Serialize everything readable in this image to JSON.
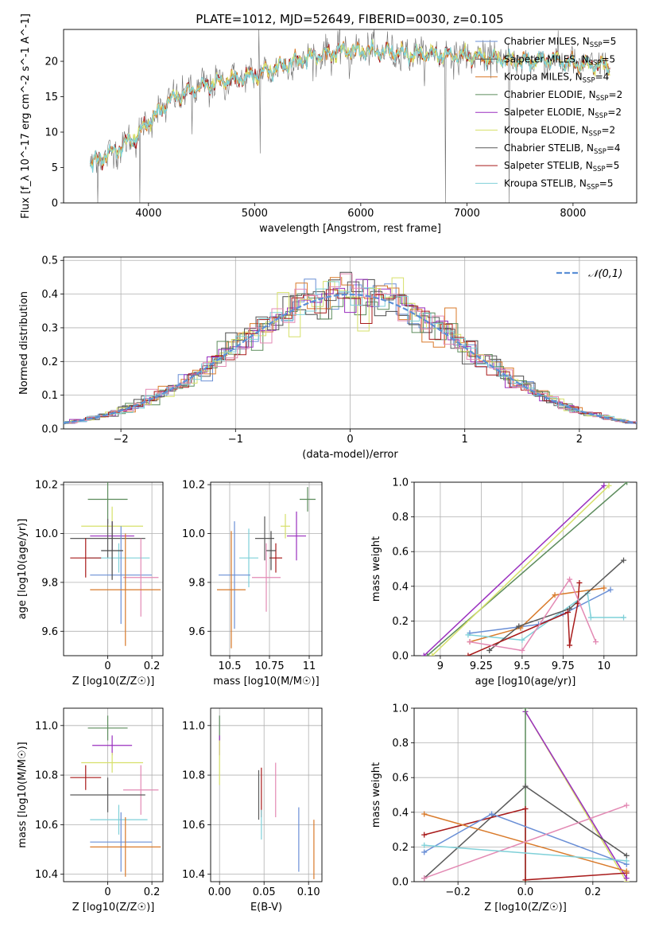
{
  "figure": {
    "title": "PLATE=1012, MJD=52649, FIBERID=0030, z=0.105"
  },
  "colors": {
    "Chabrier MILES": "#6a8fd6",
    "Salpeter MILES": "#4a4a4a",
    "Kroupa MILES": "#d97a2a",
    "Chabrier ELODIE": "#5c8c5c",
    "Salpeter ELODIE": "#9a2fbf",
    "Kroupa ELODIE": "#d6e06a",
    "Chabrier STELIB": "#5a5a5a",
    "Salpeter STELIB": "#a81a1a",
    "Kroupa STELIB": "#7fd0d8",
    "Normal curve": "#5b8fd6",
    "Pink": "#e38ab4"
  },
  "chart_data": [
    {
      "id": "spectrum",
      "type": "line",
      "title": "PLATE=1012, MJD=52649, FIBERID=0030, z=0.105",
      "xlabel": "wavelength [Angstrom, rest frame]",
      "ylabel": "Flux [f_λ 10^-17 erg cm^-2 s^-1 A^-1]",
      "xlim": [
        3200,
        8600
      ],
      "ylim": [
        0,
        24.5
      ],
      "xticks": [
        4000,
        5000,
        6000,
        7000,
        8000
      ],
      "yticks": [
        0,
        5,
        10,
        15,
        20
      ],
      "grid": false,
      "legend_position": "right",
      "series": [
        {
          "name": "Chabrier MILES, N_SSP=5"
        },
        {
          "name": "Salpeter MILES, N_SSP=5"
        },
        {
          "name": "Kroupa MILES, N_SSP=4"
        },
        {
          "name": "Chabrier ELODIE, N_SSP=2"
        },
        {
          "name": "Salpeter ELODIE, N_SSP=2"
        },
        {
          "name": "Kroupa ELODIE, N_SSP=2"
        },
        {
          "name": "Chabrier STELIB, N_SSP=4"
        },
        {
          "name": "Salpeter STELIB, N_SSP=5"
        },
        {
          "name": "Kroupa STELIB, N_SSP=5"
        }
      ],
      "continuum_points": [
        [
          3450,
          5.5
        ],
        [
          3700,
          7.5
        ],
        [
          3900,
          9.5
        ],
        [
          4000,
          11.5
        ],
        [
          4200,
          14.5
        ],
        [
          4500,
          16.5
        ],
        [
          4800,
          17.5
        ],
        [
          5000,
          18.0
        ],
        [
          5200,
          19.0
        ],
        [
          5500,
          20.5
        ],
        [
          5800,
          21.5
        ],
        [
          6000,
          21.5
        ],
        [
          6300,
          21.3
        ],
        [
          6600,
          21.0
        ],
        [
          6900,
          20.8
        ],
        [
          7200,
          20.5
        ],
        [
          7500,
          20.0
        ],
        [
          7800,
          20.2
        ],
        [
          8100,
          19.5
        ],
        [
          8350,
          19.3
        ]
      ],
      "dips": [
        [
          3520,
          0
        ],
        [
          3920,
          0
        ],
        [
          4410,
          9.7
        ],
        [
          4570,
          13.5
        ],
        [
          5150,
          17.0
        ],
        [
          5890,
          17.5
        ],
        [
          6560,
          19.5
        ],
        [
          6800,
          0
        ],
        [
          7400,
          0
        ]
      ],
      "spikes": [
        [
          5040,
          24.5
        ],
        [
          5050,
          7.0
        ]
      ]
    },
    {
      "id": "residuals",
      "type": "line",
      "xlabel": "(data-model)/error",
      "ylabel": "Normed distribution",
      "xlim": [
        -2.5,
        2.5
      ],
      "ylim": [
        0,
        0.51
      ],
      "xticks": [
        -2,
        -1,
        0,
        1,
        2
      ],
      "xtick_labels": [
        "−2",
        "−1",
        "0",
        "1",
        "2"
      ],
      "yticks": [
        0.0,
        0.1,
        0.2,
        0.3,
        0.4,
        0.5
      ],
      "grid": true,
      "legend_position": "top-right",
      "legend": "𝒩(0,1)",
      "normal": {
        "mean": 0,
        "sigma": 1
      }
    },
    {
      "id": "Z-age",
      "type": "scatter",
      "xlabel": "Z [log10(Z/Z☉)]",
      "ylabel": "age [log10(age/yr)]",
      "xlim": [
        -0.2,
        0.25
      ],
      "ylim": [
        9.5,
        10.21
      ],
      "xticks": [
        0.0,
        0.2
      ],
      "yticks": [
        9.6,
        9.8,
        10.0,
        10.2
      ],
      "grid": true,
      "points": [
        {
          "c": "Chabrier ELODIE",
          "x": 0.0,
          "xerr": 0.09,
          "y": 10.14,
          "yerr": 0.1
        },
        {
          "c": "Kroupa ELODIE",
          "x": 0.02,
          "xerr": 0.14,
          "y": 10.03,
          "yerr": 0.08
        },
        {
          "c": "Salpeter ELODIE",
          "x": 0.02,
          "xerr": 0.1,
          "y": 9.99,
          "yerr": 0.06
        },
        {
          "c": "Chabrier STELIB",
          "x": 0.0,
          "xerr": 0.17,
          "y": 9.98,
          "yerr": 0.08
        },
        {
          "c": "Kroupa STELIB",
          "x": 0.05,
          "xerr": 0.14,
          "y": 9.9,
          "yerr": 0.06
        },
        {
          "c": "Salpeter STELIB",
          "x": -0.1,
          "xerr": 0.07,
          "y": 9.9,
          "yerr": 0.08
        },
        {
          "c": "Chabrier MILES",
          "x": 0.06,
          "xerr": 0.14,
          "y": 9.83,
          "yerr": 0.2
        },
        {
          "c": "Pink",
          "x": 0.15,
          "xerr": 0.08,
          "y": 9.82,
          "yerr": 0.16
        },
        {
          "c": "Kroupa MILES",
          "x": 0.08,
          "xerr": 0.16,
          "y": 9.77,
          "yerr": 0.23
        },
        {
          "c": "Salpeter MILES",
          "x": 0.02,
          "xerr": 0.05,
          "y": 9.93,
          "yerr": 0.12
        }
      ]
    },
    {
      "id": "mass-age",
      "type": "scatter",
      "xlabel": "mass [log10(M/M☉)]",
      "xlim": [
        10.38,
        11.08
      ],
      "ylim": [
        9.5,
        10.21
      ],
      "xticks": [
        10.5,
        10.75,
        11.0
      ],
      "yticks": [
        9.6,
        9.8,
        10.0,
        10.2
      ],
      "grid": true,
      "points": [
        {
          "c": "Chabrier ELODIE",
          "x": 10.99,
          "xerr": 0.05,
          "y": 10.14,
          "yerr": 0.05
        },
        {
          "c": "Kroupa ELODIE",
          "x": 10.85,
          "xerr": 0.03,
          "y": 10.03,
          "yerr": 0.05
        },
        {
          "c": "Salpeter ELODIE",
          "x": 10.92,
          "xerr": 0.06,
          "y": 9.99,
          "yerr": 0.1
        },
        {
          "c": "Chabrier STELIB",
          "x": 10.72,
          "xerr": 0.06,
          "y": 9.98,
          "yerr": 0.09
        },
        {
          "c": "Kroupa STELIB",
          "x": 10.62,
          "xerr": 0.06,
          "y": 9.9,
          "yerr": 0.12
        },
        {
          "c": "Salpeter STELIB",
          "x": 10.79,
          "xerr": 0.04,
          "y": 9.9,
          "yerr": 0.06
        },
        {
          "c": "Chabrier MILES",
          "x": 10.53,
          "xerr": 0.1,
          "y": 9.83,
          "yerr": 0.22
        },
        {
          "c": "Pink",
          "x": 10.73,
          "xerr": 0.09,
          "y": 9.82,
          "yerr": 0.14
        },
        {
          "c": "Kroupa MILES",
          "x": 10.51,
          "xerr": 0.09,
          "y": 9.77,
          "yerr": 0.24
        },
        {
          "c": "Salpeter MILES",
          "x": 10.76,
          "xerr": 0.03,
          "y": 9.93,
          "yerr": 0.08
        }
      ]
    },
    {
      "id": "age-weight",
      "type": "line",
      "xlabel": "age [log10(age/yr)]",
      "ylabel": "mass weight",
      "xlim": [
        8.84,
        10.2
      ],
      "ylim": [
        0,
        1.0
      ],
      "xticks": [
        9.0,
        9.25,
        9.5,
        9.75,
        10.0
      ],
      "yticks": [
        0.0,
        0.2,
        0.4,
        0.6,
        0.8,
        1.0
      ],
      "grid": true,
      "series": [
        {
          "c": "Chabrier ELODIE",
          "x": [
            8.92,
            10.14
          ],
          "y": [
            0.0,
            1.0
          ]
        },
        {
          "c": "Salpeter ELODIE",
          "x": [
            8.9,
            10.0
          ],
          "y": [
            0.0,
            0.98
          ]
        },
        {
          "c": "Kroupa ELODIE",
          "x": [
            8.95,
            10.03
          ],
          "y": [
            0.0,
            0.98
          ]
        },
        {
          "c": "Chabrier MILES",
          "x": [
            9.18,
            9.6,
            9.75,
            10.04
          ],
          "y": [
            0.13,
            0.18,
            0.24,
            0.38
          ]
        },
        {
          "c": "Kroupa MILES",
          "x": [
            9.18,
            9.49,
            9.7,
            10.0
          ],
          "y": [
            0.08,
            0.16,
            0.35,
            0.39
          ]
        },
        {
          "c": "Kroupa STELIB",
          "x": [
            9.17,
            9.5,
            9.9,
            9.92,
            10.12
          ],
          "y": [
            0.12,
            0.09,
            0.36,
            0.22,
            0.22
          ]
        },
        {
          "c": "Chabrier STELIB",
          "x": [
            9.3,
            9.48,
            9.79,
            10.12
          ],
          "y": [
            0.03,
            0.17,
            0.27,
            0.55
          ]
        },
        {
          "c": "Salpeter STELIB",
          "x": [
            9.17,
            9.78,
            9.79,
            9.84,
            9.85
          ],
          "y": [
            0.0,
            0.25,
            0.06,
            0.3,
            0.42
          ]
        },
        {
          "c": "Pink",
          "x": [
            9.18,
            9.5,
            9.79,
            9.95
          ],
          "y": [
            0.08,
            0.03,
            0.44,
            0.08
          ]
        }
      ]
    },
    {
      "id": "Z-mass",
      "type": "scatter",
      "xlabel": "Z [log10(Z/Z☉)]",
      "ylabel": "mass [log10(M/M☉)]",
      "xlim": [
        -0.2,
        0.25
      ],
      "ylim": [
        10.37,
        11.07
      ],
      "xticks": [
        0.0,
        0.2
      ],
      "yticks": [
        10.4,
        10.6,
        10.8,
        11.0
      ],
      "grid": true,
      "points": [
        {
          "c": "Chabrier ELODIE",
          "x": 0.0,
          "xerr": 0.09,
          "y": 10.99,
          "yerr": 0.05
        },
        {
          "c": "Salpeter ELODIE",
          "x": 0.02,
          "xerr": 0.09,
          "y": 10.92,
          "yerr": 0.04
        },
        {
          "c": "Kroupa ELODIE",
          "x": 0.02,
          "xerr": 0.14,
          "y": 10.85,
          "yerr": 0.04
        },
        {
          "c": "Salpeter STELIB",
          "x": -0.1,
          "xerr": 0.07,
          "y": 10.79,
          "yerr": 0.05
        },
        {
          "c": "Pink",
          "x": 0.15,
          "xerr": 0.08,
          "y": 10.74,
          "yerr": 0.1
        },
        {
          "c": "Chabrier STELIB",
          "x": 0.0,
          "xerr": 0.17,
          "y": 10.72,
          "yerr": 0.07
        },
        {
          "c": "Kroupa STELIB",
          "x": 0.05,
          "xerr": 0.13,
          "y": 10.62,
          "yerr": 0.06
        },
        {
          "c": "Chabrier MILES",
          "x": 0.06,
          "xerr": 0.14,
          "y": 10.53,
          "yerr": 0.12
        },
        {
          "c": "Kroupa MILES",
          "x": 0.08,
          "xerr": 0.16,
          "y": 10.51,
          "yerr": 0.12
        }
      ]
    },
    {
      "id": "ebv-mass",
      "type": "scatter",
      "xlabel": "E(B-V)",
      "xlim": [
        -0.01,
        0.115
      ],
      "ylim": [
        10.37,
        11.07
      ],
      "xticks": [
        0.0,
        0.05,
        0.1
      ],
      "xtick_labels": [
        "0.00",
        "0.05",
        "0.10"
      ],
      "yticks": [
        10.4,
        10.6,
        10.8,
        11.0
      ],
      "grid": true,
      "points": [
        {
          "c": "Chabrier ELODIE",
          "x": 0.0,
          "y": 10.99,
          "yerr": 0.05
        },
        {
          "c": "Salpeter ELODIE",
          "x": 0.0,
          "y": 10.92,
          "yerr": 0.04
        },
        {
          "c": "Kroupa ELODIE",
          "x": 0.0,
          "y": 10.85,
          "yerr": 0.09
        },
        {
          "c": "Chabrier STELIB",
          "x": 0.044,
          "y": 10.72,
          "yerr": 0.1
        },
        {
          "c": "Salpeter STELIB",
          "x": 0.047,
          "y": 10.73,
          "yerr": 0.1
        },
        {
          "c": "Kroupa STELIB",
          "x": 0.047,
          "y": 10.6,
          "yerr": 0.06
        },
        {
          "c": "Pink",
          "x": 0.063,
          "y": 10.74,
          "yerr": 0.11
        },
        {
          "c": "Chabrier MILES",
          "x": 0.089,
          "y": 10.54,
          "yerr": 0.13
        },
        {
          "c": "Kroupa MILES",
          "x": 0.106,
          "y": 10.5,
          "yerr": 0.12
        }
      ]
    },
    {
      "id": "Z-weight",
      "type": "line",
      "xlabel": "Z [log10(Z/Z☉)]",
      "ylabel": "mass weight",
      "xlim": [
        -0.33,
        0.33
      ],
      "ylim": [
        0,
        1.0
      ],
      "xticks": [
        -0.2,
        0.0,
        0.2
      ],
      "xtick_labels": [
        "−0.2",
        "0.0",
        "0.2"
      ],
      "yticks": [
        0.0,
        0.2,
        0.4,
        0.6,
        0.8,
        1.0
      ],
      "grid": true,
      "series": [
        {
          "c": "Kroupa ELODIE",
          "x": [
            0.0,
            0.3
          ],
          "y": [
            0.98,
            0.0
          ]
        },
        {
          "c": "Salpeter ELODIE",
          "x": [
            0.0,
            0.3
          ],
          "y": [
            0.98,
            0.02
          ]
        },
        {
          "c": "Chabrier ELODIE",
          "x": [
            0.0,
            0.0
          ],
          "y": [
            0.0,
            1.0
          ]
        },
        {
          "c": "Chabrier STELIB",
          "x": [
            -0.3,
            0.0,
            0.3
          ],
          "y": [
            0.02,
            0.55,
            0.15
          ]
        },
        {
          "c": "Salpeter STELIB",
          "x": [
            -0.3,
            0.0,
            0.0,
            0.3
          ],
          "y": [
            0.27,
            0.42,
            0.01,
            0.05
          ]
        },
        {
          "c": "Kroupa MILES",
          "x": [
            -0.3,
            0.3
          ],
          "y": [
            0.39,
            0.06
          ]
        },
        {
          "c": "Chabrier MILES",
          "x": [
            -0.3,
            -0.1,
            0.3
          ],
          "y": [
            0.17,
            0.39,
            0.1
          ]
        },
        {
          "c": "Pink",
          "x": [
            -0.3,
            0.3
          ],
          "y": [
            0.02,
            0.44
          ]
        },
        {
          "c": "Kroupa STELIB",
          "x": [
            -0.3,
            0.3
          ],
          "y": [
            0.21,
            0.12
          ]
        }
      ]
    }
  ]
}
